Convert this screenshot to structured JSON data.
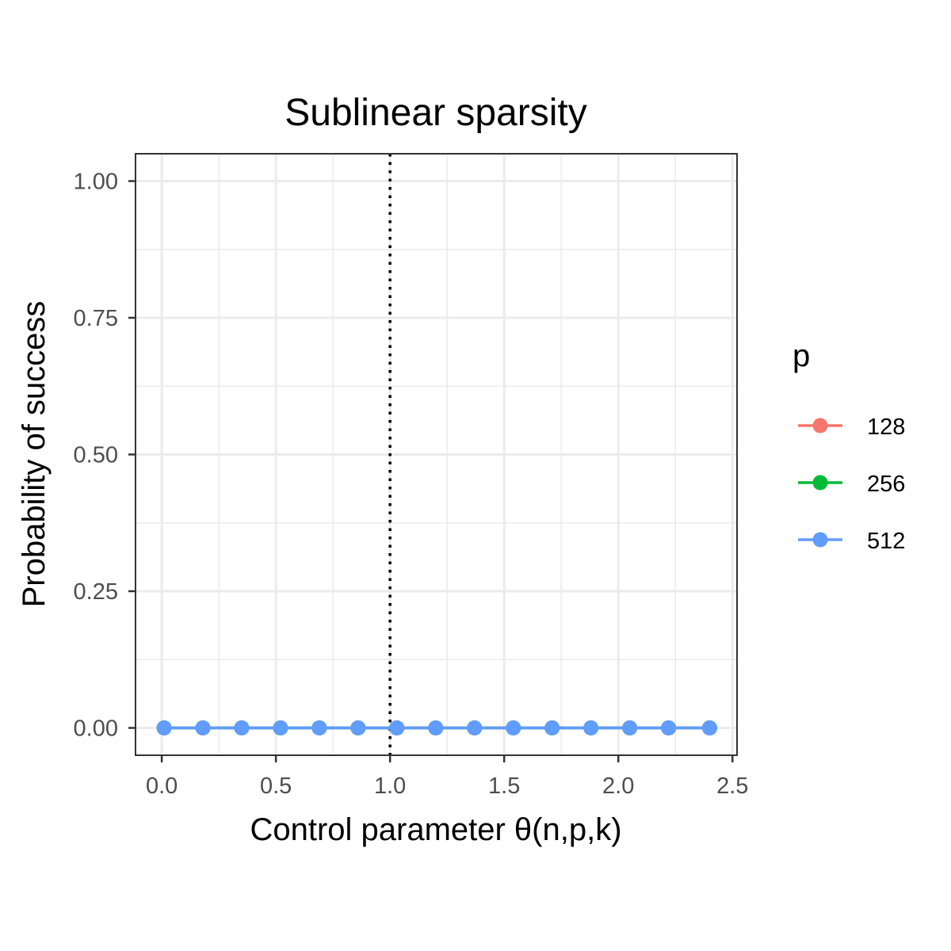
{
  "chart_data": {
    "type": "line",
    "title": "Sublinear sparsity",
    "xlabel": "Control parameter θ(n,p,k)",
    "ylabel": "Probability of success",
    "xlim": [
      -0.115,
      2.52
    ],
    "ylim": [
      -0.05,
      1.05
    ],
    "x_ticks": [
      0,
      0.5,
      1,
      1.5,
      2,
      2.5
    ],
    "x_tick_labels": [
      "0.0",
      "0.5",
      "1.0",
      "1.5",
      "2.0",
      "2.5"
    ],
    "y_ticks": [
      0,
      0.25,
      0.5,
      0.75,
      1
    ],
    "y_tick_labels": [
      "0.00",
      "0.25",
      "0.50",
      "0.75",
      "1.00"
    ],
    "grid": true,
    "reference_line": {
      "x": 1.0,
      "style": "dotted"
    },
    "legend": {
      "title": "p",
      "position": "right"
    },
    "x": [
      0.01,
      0.18,
      0.35,
      0.52,
      0.69,
      0.86,
      1.03,
      1.2,
      1.37,
      1.54,
      1.71,
      1.88,
      2.05,
      2.22,
      2.4
    ],
    "series": [
      {
        "name": "128",
        "color": "#F8766D",
        "values": [
          0,
          0,
          0,
          0,
          0,
          0,
          0,
          0,
          0,
          0,
          0,
          0,
          0,
          0,
          0
        ]
      },
      {
        "name": "256",
        "color": "#00BA38",
        "values": [
          0,
          0,
          0,
          0,
          0,
          0,
          0,
          0,
          0,
          0,
          0,
          0,
          0,
          0,
          0
        ]
      },
      {
        "name": "512",
        "color": "#619CFF",
        "values": [
          0,
          0,
          0,
          0,
          0,
          0,
          0,
          0,
          0,
          0,
          0,
          0,
          0,
          0,
          0
        ]
      }
    ]
  }
}
